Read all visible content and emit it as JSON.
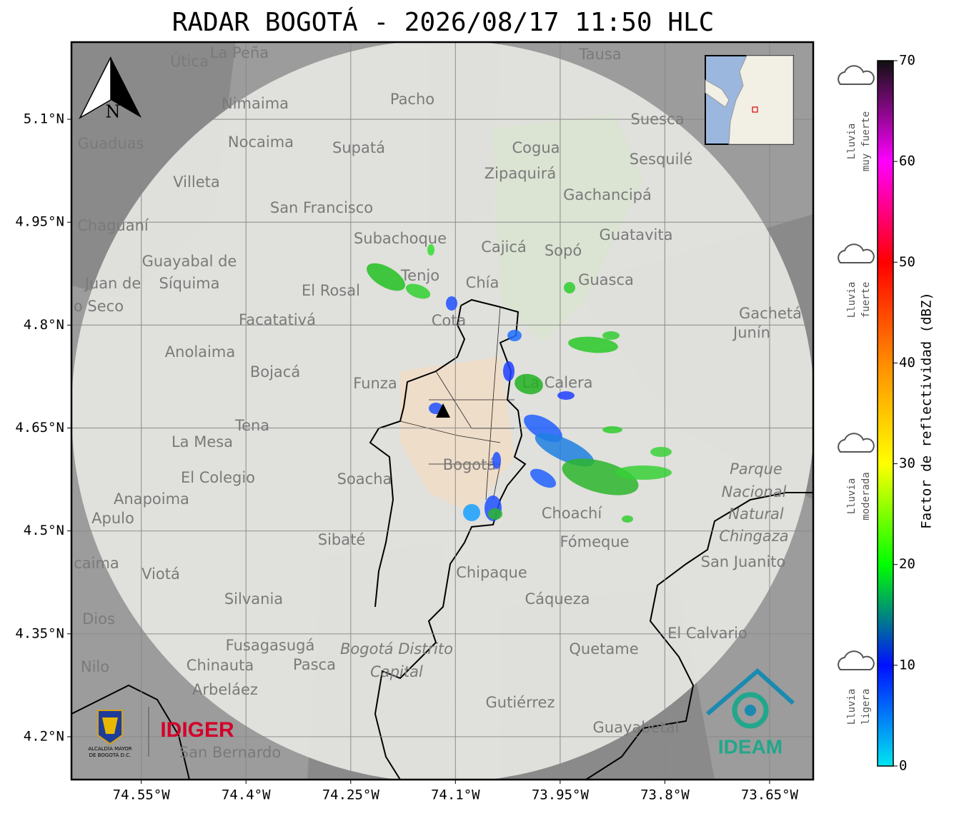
{
  "title": "RADAR BOGOTÁ - 2026/08/17 11:50 HLC",
  "map": {
    "type": "map",
    "xlim": [
      -74.65,
      -73.5875
    ],
    "ylim": [
      4.1375,
      5.2125
    ],
    "xticks": [
      {
        "value": -74.55,
        "label": "74.55°W"
      },
      {
        "value": -74.4,
        "label": "74.4°W"
      },
      {
        "value": -74.25,
        "label": "74.25°W"
      },
      {
        "value": -74.1,
        "label": "74.1°W"
      },
      {
        "value": -73.95,
        "label": "73.95°W"
      },
      {
        "value": -73.8,
        "label": "73.8°W"
      },
      {
        "value": -73.65,
        "label": "73.65°W"
      }
    ],
    "yticks": [
      {
        "value": 5.1,
        "label": "5.1°N"
      },
      {
        "value": 4.95,
        "label": "4.95°N"
      },
      {
        "value": 4.8,
        "label": "4.8°N"
      },
      {
        "value": 4.65,
        "label": "4.65°N"
      },
      {
        "value": 4.5,
        "label": "4.5°N"
      },
      {
        "value": 4.35,
        "label": "4.35°N"
      },
      {
        "value": 4.2,
        "label": "4.2°N"
      }
    ],
    "grid": true,
    "north": "N",
    "places": [
      "La Peña",
      "Útica",
      "Tausa",
      "Pacho",
      "Nimaima",
      "Guaduas",
      "Nocaima",
      "Supatá",
      "Suesca",
      "Cogua",
      "Sesquilé",
      "Zipaquirá",
      "Villeta",
      "San Francisco",
      "Gachancipá",
      "Chaguaní",
      "Subachoque",
      "Guatavita",
      "Cajicá",
      "Sopó",
      "Guayabal de",
      "Síquima",
      "Tenjo",
      "El Rosal",
      "Chía",
      "Guasca",
      "Juan de",
      "o Seco",
      "Facatativá",
      "Cota",
      "Gachetá",
      "Junín",
      "Anolaima",
      "Bojacá",
      "Funza",
      "La Calera",
      "Tena",
      "La Mesa",
      "Bogotá",
      "Soacha",
      "El Colegio",
      "Parque",
      "Nacional",
      "Natural",
      "Chingaza",
      "Anapoima",
      "Apulo",
      "Choachí",
      "Sibaté",
      "Fómeque",
      "San Juanito",
      "caima",
      "Viotá",
      "Chipaque",
      "Silvania",
      "Cáqueza",
      "Dios",
      "El Calvario",
      "Fusagasugá",
      "Bogotá Distrito",
      "Capital",
      "Quetame",
      "Nilo",
      "Chinauta",
      "Pasca",
      "Arbeláez",
      "Gutiérrez",
      "Guayabetal",
      "San Bernardo"
    ]
  },
  "logos": {
    "alcaldia": [
      "ALCALDÍA MAYOR",
      "DE BOGOTÁ D.C."
    ],
    "idiger": "IDIGER",
    "ideam": "IDEAM"
  },
  "colorbar": {
    "label": "Factor de reflectividad (dBZ)",
    "range": [
      0,
      70
    ],
    "ticks": [
      0,
      10,
      20,
      30,
      40,
      50,
      60,
      70
    ],
    "colors": [
      "#00e5f0",
      "#0010ff",
      "#00ff00",
      "#ffff00",
      "#ff8c00",
      "#ff0000",
      "#ff00ff",
      "#101010"
    ]
  },
  "rain_levels": [
    [
      "Lluvia",
      "muy fuerte"
    ],
    [
      "Lluvia",
      "fuerte"
    ],
    [
      "Lluvia",
      "moderada"
    ],
    [
      "Lluvia",
      "ligera"
    ]
  ]
}
